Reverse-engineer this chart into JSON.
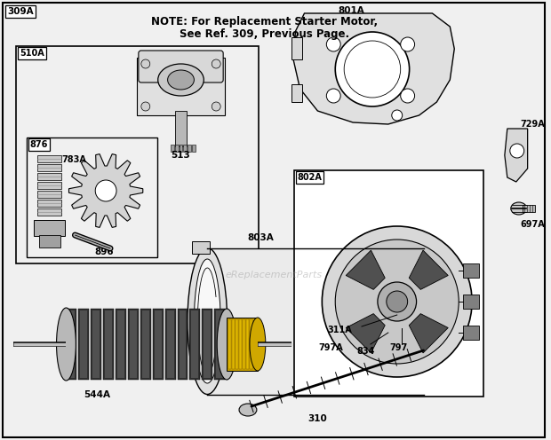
{
  "bg_color": "#f0f0f0",
  "note_line1": "NOTE: For Replacement Starter Motor,",
  "note_line2": "See Ref. 309, Previous Page.",
  "watermark": "eReplacementParts"
}
